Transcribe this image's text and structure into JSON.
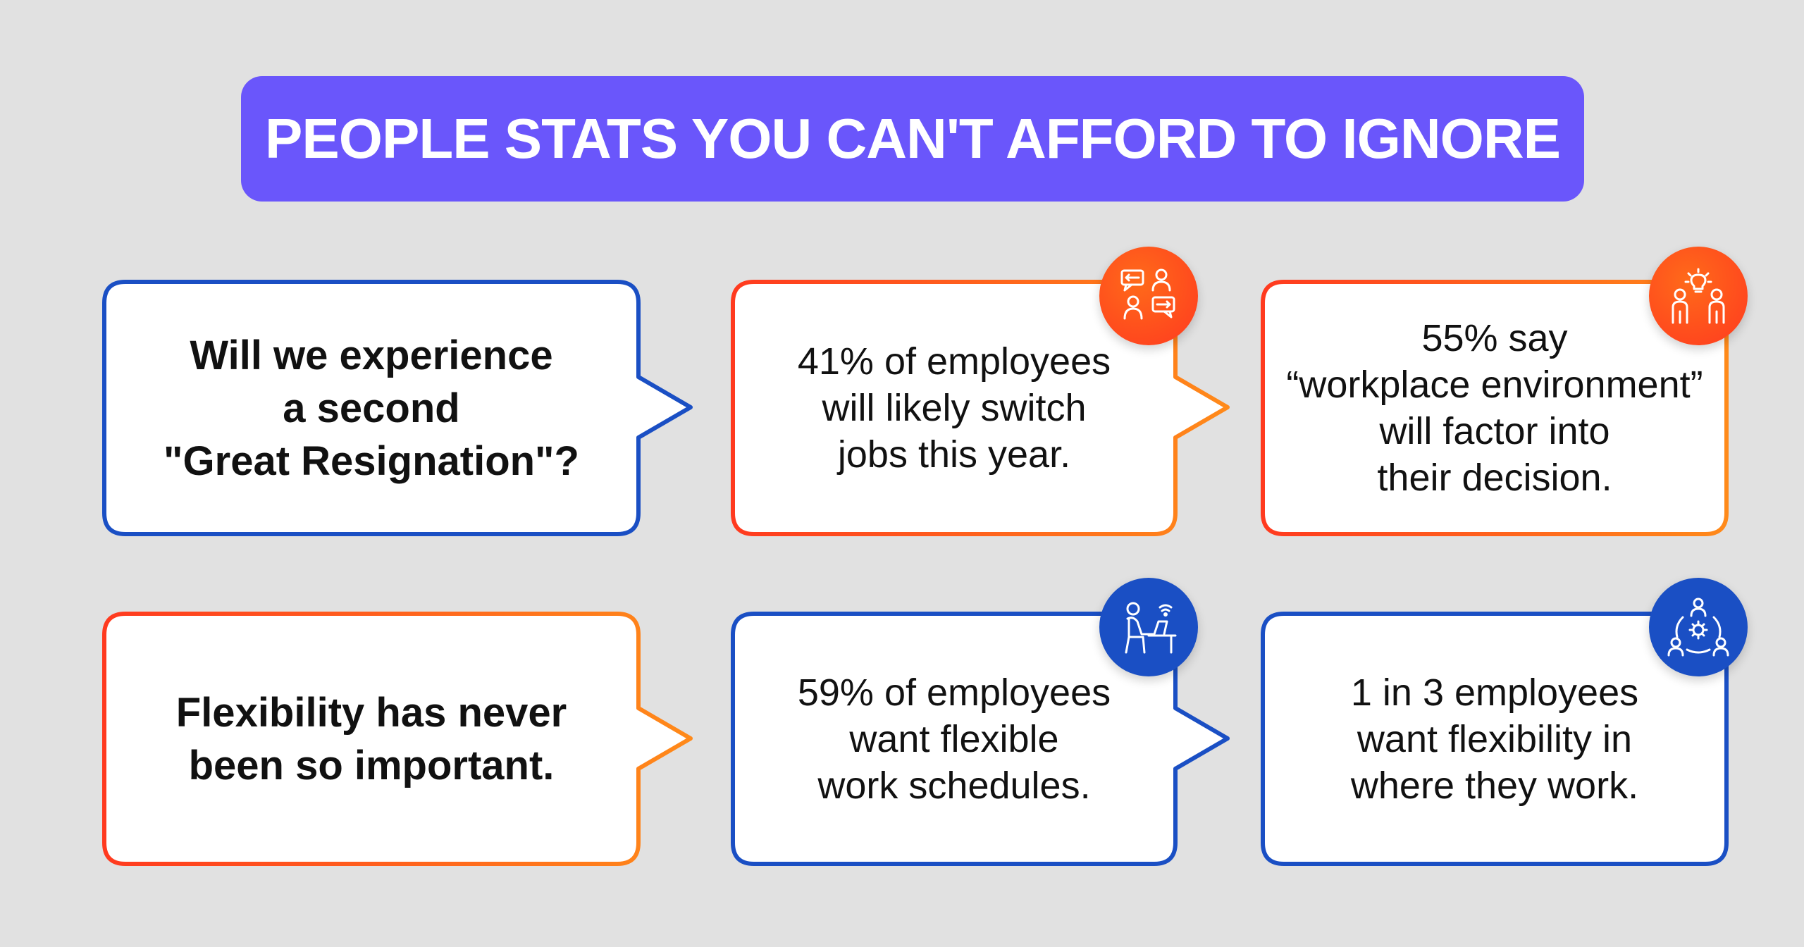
{
  "title": "PEOPLE STATS YOU CAN'T AFFORD TO IGNORE",
  "colors": {
    "background": "#e1e1e1",
    "banner": "#6a56fb",
    "blue": "#1a4fc4",
    "orange": "#ff7a1a",
    "red": "#ff3a1f"
  },
  "rows": [
    {
      "question": {
        "lines": [
          "Will we experience",
          "a second",
          "\"Great Resignation\"?"
        ]
      },
      "stats": [
        {
          "lines": [
            "41% of employees",
            "will likely switch",
            "jobs this year."
          ],
          "icon": "people-exchange-icon"
        },
        {
          "lines": [
            "55% say",
            "“workplace environment”",
            "will factor into",
            "their decision."
          ],
          "icon": "people-idea-icon"
        }
      ]
    },
    {
      "question": {
        "lines": [
          "Flexibility has never",
          "been so important."
        ]
      },
      "stats": [
        {
          "lines": [
            "59% of employees",
            "want flexible",
            "work schedules."
          ],
          "icon": "remote-worker-icon"
        },
        {
          "lines": [
            "1 in 3 employees",
            "want flexibility in",
            "where they work."
          ],
          "icon": "team-settings-icon"
        }
      ]
    }
  ]
}
